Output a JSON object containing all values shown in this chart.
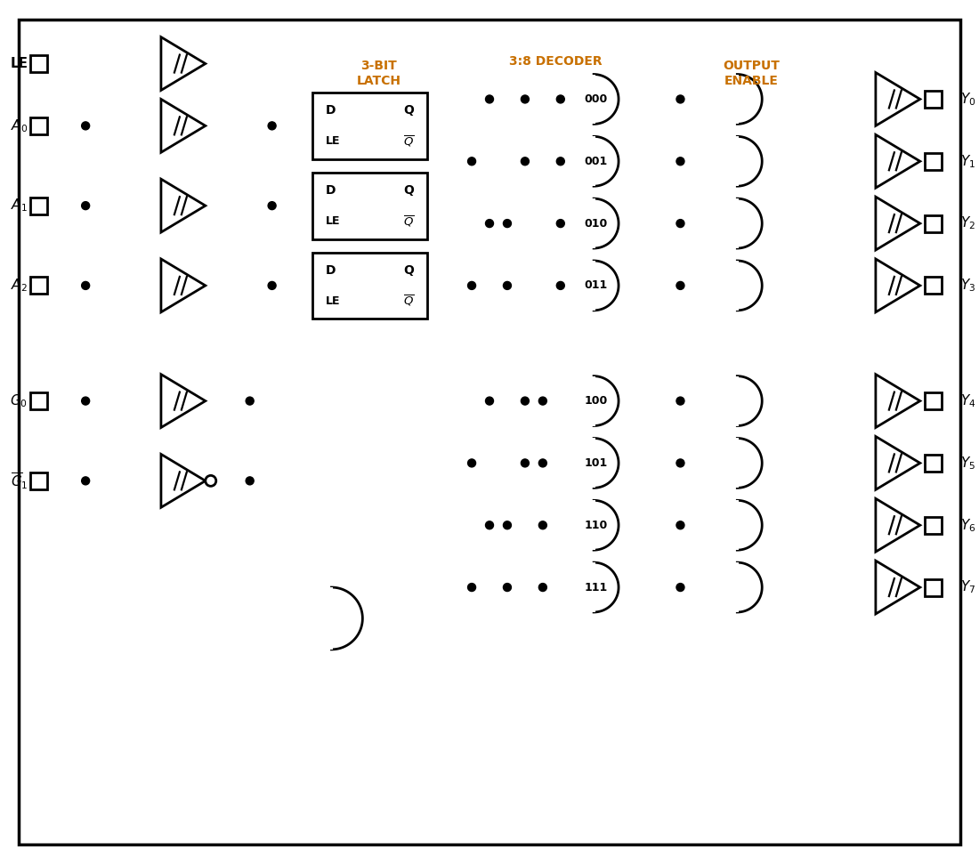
{
  "bg": "#ffffff",
  "lc": "#000000",
  "label_color": "#c87000",
  "lw": 2.0,
  "blw": 2.5,
  "decoder_labels": [
    "000",
    "001",
    "010",
    "011",
    "100",
    "101",
    "110",
    "111"
  ]
}
